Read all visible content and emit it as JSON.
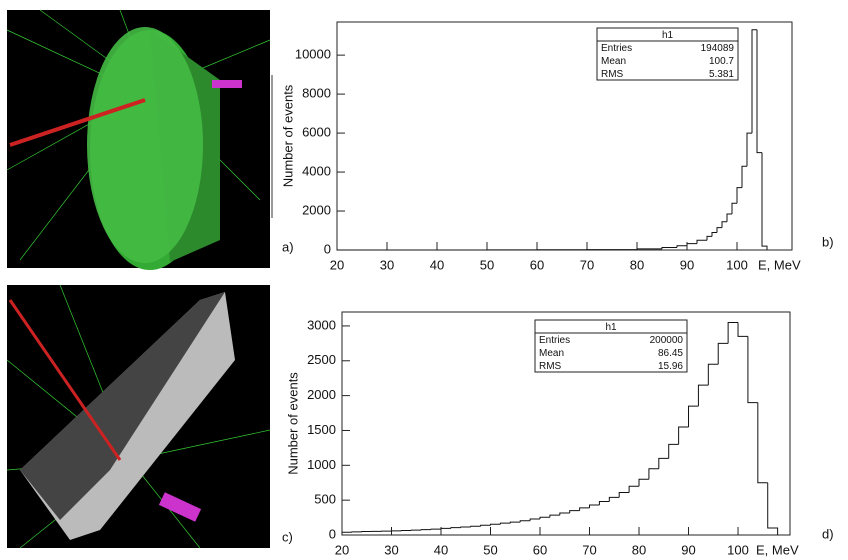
{
  "images": [
    {
      "label": "a)"
    },
    {
      "label": "c)"
    }
  ],
  "chart_data": [
    {
      "type": "histogram",
      "panel_label": "b)",
      "ylabel": "Number of events",
      "xlabel": "E, MeV",
      "bins": [
        20,
        30,
        40,
        50,
        60,
        70,
        80,
        85,
        88,
        90,
        92,
        94,
        95,
        96,
        97,
        98,
        99,
        100,
        101,
        102,
        103,
        104,
        105,
        106
      ],
      "values": [
        0,
        0,
        0,
        5,
        10,
        20,
        60,
        130,
        220,
        330,
        500,
        700,
        900,
        1150,
        1450,
        1850,
        2400,
        3200,
        4300,
        6000,
        11300,
        5000,
        200
      ],
      "color": "#111111",
      "xlim": [
        20,
        111
      ],
      "xticks": [
        20,
        30,
        40,
        50,
        60,
        70,
        80,
        90,
        100
      ],
      "ylim": [
        0,
        11700
      ],
      "yticks": [
        0,
        2000,
        4000,
        6000,
        8000,
        10000
      ],
      "stats": {
        "title": "h1",
        "rows": [
          [
            "Entries",
            "194089"
          ],
          [
            "Mean",
            "100.7"
          ],
          [
            "RMS",
            "5.381"
          ]
        ]
      }
    },
    {
      "type": "histogram",
      "panel_label": "d)",
      "ylabel": "Number of events",
      "xlabel": "E, MeV",
      "bins": [
        20,
        22,
        24,
        26,
        28,
        30,
        32,
        34,
        36,
        38,
        40,
        42,
        44,
        46,
        48,
        50,
        52,
        54,
        56,
        58,
        60,
        62,
        64,
        66,
        68,
        70,
        72,
        74,
        76,
        78,
        80,
        82,
        84,
        86,
        88,
        90,
        92,
        94,
        96,
        98,
        100,
        102,
        104,
        106,
        108
      ],
      "values": [
        40,
        45,
        50,
        52,
        55,
        60,
        65,
        70,
        78,
        85,
        95,
        105,
        115,
        125,
        140,
        155,
        170,
        185,
        205,
        230,
        255,
        285,
        315,
        350,
        390,
        430,
        480,
        540,
        610,
        700,
        800,
        950,
        1100,
        1300,
        1550,
        1850,
        2150,
        2450,
        2750,
        3050,
        2850,
        1900,
        750,
        100
      ],
      "color": "#111111",
      "xlim": [
        20,
        110.5
      ],
      "xticks": [
        20,
        30,
        40,
        50,
        60,
        70,
        80,
        90,
        100
      ],
      "ylim": [
        0,
        3200
      ],
      "yticks": [
        0,
        500,
        1000,
        1500,
        2000,
        2500,
        3000
      ],
      "stats": {
        "title": "h1",
        "rows": [
          [
            "Entries",
            "200000"
          ],
          [
            "Mean",
            "86.45"
          ],
          [
            "RMS",
            "15.96"
          ]
        ]
      }
    }
  ]
}
